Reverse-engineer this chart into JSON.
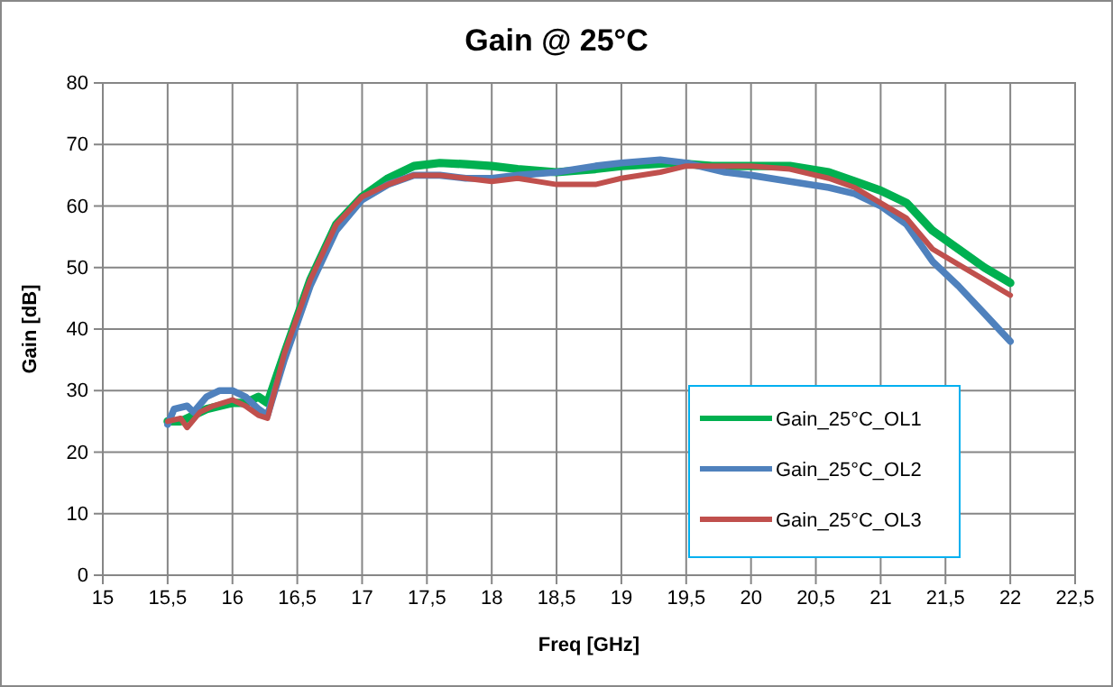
{
  "chart_data": {
    "type": "line",
    "title": "Gain @ 25°C",
    "xlabel": "Freq [GHz]",
    "ylabel": "Gain [dB]",
    "xlim": [
      15,
      22.5
    ],
    "xticks": [
      15,
      {
        "value": 15.5,
        "label": "15,5"
      },
      16,
      {
        "value": 16.5,
        "label": "16,5"
      },
      17,
      {
        "value": 17.5,
        "label": "17,5"
      },
      18,
      {
        "value": 18.5,
        "label": "18,5"
      },
      19,
      {
        "value": 19.5,
        "label": "19,5"
      },
      20,
      {
        "value": 20.5,
        "label": "20,5"
      },
      21,
      {
        "value": 21.5,
        "label": "21,5"
      },
      22,
      {
        "value": 22.5,
        "label": "22,5"
      }
    ],
    "ylim": [
      0,
      80
    ],
    "yticks": [
      0,
      10,
      20,
      30,
      40,
      50,
      60,
      70,
      80
    ],
    "grid": true,
    "legend": "bottom right",
    "marker": "none",
    "line_style": "solid",
    "series": [
      {
        "name": "Gain_25°C_OL1",
        "color": "#00b050",
        "x": [
          15.5,
          15.6,
          15.7,
          15.8,
          16.0,
          16.1,
          16.2,
          16.27,
          16.4,
          16.6,
          16.8,
          17.0,
          17.2,
          17.4,
          17.6,
          17.8,
          18.0,
          18.2,
          18.5,
          18.8,
          19.0,
          19.4,
          19.7,
          20.0,
          20.3,
          20.6,
          20.8,
          21.0,
          21.2,
          21.4,
          21.6,
          21.8,
          22.0
        ],
        "values": [
          25,
          25,
          26,
          27,
          28,
          28,
          29,
          28,
          36,
          48,
          57,
          61.5,
          64.5,
          66.5,
          67,
          66.8,
          66.5,
          66,
          65.5,
          66,
          66.5,
          67,
          66.5,
          66.5,
          66.5,
          65.5,
          64,
          62.5,
          60.5,
          56,
          53,
          50,
          47.5
        ]
      },
      {
        "name": "Gain_25°C_OL2",
        "color": "#4f81bd",
        "x": [
          15.5,
          15.55,
          15.65,
          15.7,
          15.8,
          15.9,
          16.0,
          16.1,
          16.2,
          16.27,
          16.4,
          16.6,
          16.8,
          17.0,
          17.2,
          17.4,
          17.6,
          17.8,
          18.0,
          18.2,
          18.5,
          18.8,
          19.0,
          19.3,
          19.5,
          19.8,
          20.0,
          20.3,
          20.6,
          20.8,
          21.0,
          21.2,
          21.4,
          21.6,
          21.8,
          22.0
        ],
        "values": [
          24.5,
          27,
          27.5,
          26.5,
          29,
          30,
          30,
          29,
          27,
          26,
          35,
          47,
          56,
          61,
          63.5,
          65,
          65,
          64.5,
          64.5,
          65,
          65.5,
          66.5,
          67,
          67.5,
          67,
          65.5,
          65,
          64,
          63,
          62,
          60,
          57,
          51,
          47,
          42.5,
          38
        ]
      },
      {
        "name": "Gain_25°C_OL3",
        "color": "#c0504d",
        "x": [
          15.5,
          15.6,
          15.65,
          15.75,
          15.85,
          16.0,
          16.1,
          16.2,
          16.27,
          16.4,
          16.6,
          16.8,
          17.0,
          17.2,
          17.4,
          17.6,
          17.8,
          18.0,
          18.2,
          18.5,
          18.8,
          19.0,
          19.3,
          19.5,
          19.8,
          20.0,
          20.3,
          20.6,
          20.8,
          21.0,
          21.2,
          21.4,
          21.6,
          21.8,
          22.0
        ],
        "values": [
          25,
          25.5,
          24,
          26.5,
          27.5,
          28.5,
          27.5,
          26,
          25.5,
          36,
          48,
          57,
          61.5,
          63.5,
          65,
          65,
          64.5,
          64,
          64.5,
          63.5,
          63.5,
          64.5,
          65.5,
          66.5,
          66.5,
          66.5,
          66,
          64.5,
          63,
          60.5,
          58,
          53,
          50.5,
          48,
          45.5
        ]
      }
    ]
  }
}
